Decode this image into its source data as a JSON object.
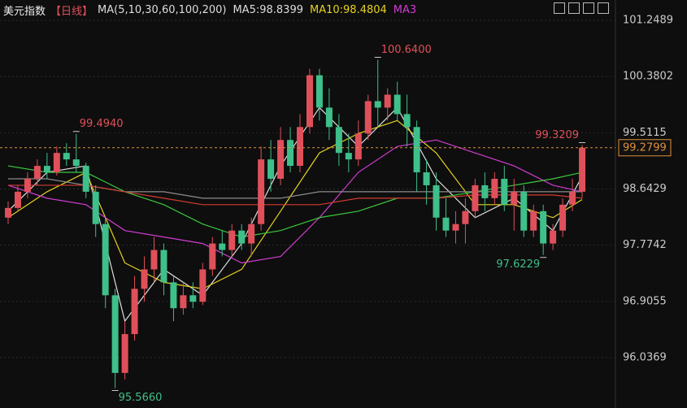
{
  "chart_data": {
    "type": "candlestick",
    "title": "美元指数",
    "period": "【日线】",
    "legend": [
      "MA(5,10,30,60,100,200)",
      "MA5:98.8399",
      "MA10:98.4804",
      "MA3"
    ],
    "legend_colors": [
      "#dddddd",
      "#dddddd",
      "#e6d21e",
      "#d23cd2"
    ],
    "ylim": [
      95.258,
      101.563
    ],
    "yticks": [
      101.2489,
      100.3802,
      99.5115,
      98.6429,
      97.7742,
      96.9055,
      96.0369
    ],
    "grid": true,
    "up_color": "#e0505a",
    "down_color": "#3fbf8a",
    "last_price": 99.2799,
    "open": [
      98.2,
      98.35,
      98.6,
      98.8,
      99.0,
      98.9,
      99.2,
      99.1,
      99.0,
      98.6,
      98.1,
      97.0,
      95.8,
      96.4,
      97.1,
      97.4,
      97.7,
      97.2,
      96.8,
      97.0,
      96.9,
      97.4,
      97.8,
      97.7,
      98.0,
      97.8,
      98.1,
      99.1,
      98.8,
      99.4,
      99.0,
      99.6,
      100.4,
      99.9,
      99.6,
      99.2,
      99.1,
      99.5,
      100.0,
      99.9,
      100.1,
      99.8,
      99.6,
      98.9,
      98.7,
      98.2,
      98.0,
      98.1,
      98.3,
      98.7,
      98.5,
      98.8,
      98.4,
      98.6,
      98.0,
      98.3,
      97.8,
      98.0,
      98.4,
      98.6
    ],
    "high": [
      98.45,
      98.7,
      98.9,
      99.1,
      99.2,
      99.3,
      99.35,
      99.494,
      99.05,
      98.7,
      98.2,
      97.1,
      96.6,
      97.3,
      97.6,
      97.9,
      97.8,
      97.3,
      97.2,
      97.2,
      97.5,
      97.9,
      98.0,
      98.1,
      98.1,
      98.2,
      99.3,
      99.4,
      99.6,
      99.6,
      99.8,
      100.5,
      100.5,
      100.2,
      99.8,
      99.5,
      99.7,
      100.1,
      100.64,
      100.2,
      100.3,
      100.1,
      99.7,
      99.1,
      98.9,
      98.5,
      98.3,
      98.5,
      98.8,
      98.9,
      98.9,
      99.0,
      98.8,
      98.7,
      98.4,
      98.4,
      98.1,
      98.5,
      98.8,
      99.3209
    ],
    "low": [
      98.1,
      98.3,
      98.5,
      98.7,
      98.8,
      98.85,
      99.0,
      98.9,
      98.5,
      97.9,
      96.8,
      95.566,
      95.7,
      96.3,
      96.9,
      97.2,
      97.0,
      96.6,
      96.7,
      96.8,
      96.85,
      97.3,
      97.6,
      97.6,
      97.7,
      97.6,
      98.0,
      98.6,
      98.7,
      98.9,
      98.9,
      99.5,
      99.7,
      99.4,
      99.0,
      98.9,
      99.0,
      99.4,
      99.6,
      99.7,
      99.7,
      99.3,
      98.6,
      98.4,
      98.0,
      97.9,
      97.8,
      97.8,
      98.2,
      98.3,
      98.4,
      98.3,
      98.0,
      97.9,
      97.9,
      97.6229,
      97.7,
      97.9,
      98.3,
      98.5
    ],
    "close": [
      98.35,
      98.6,
      98.8,
      99.0,
      98.9,
      99.2,
      99.1,
      99.0,
      98.6,
      98.1,
      97.0,
      95.8,
      96.4,
      97.1,
      97.4,
      97.7,
      97.2,
      96.8,
      97.0,
      96.9,
      97.4,
      97.8,
      97.7,
      98.0,
      97.8,
      98.1,
      99.1,
      98.8,
      99.4,
      99.0,
      99.6,
      100.4,
      99.9,
      99.6,
      99.2,
      99.1,
      99.5,
      100.0,
      99.9,
      100.1,
      99.8,
      99.6,
      98.9,
      98.7,
      98.2,
      98.0,
      98.1,
      98.3,
      98.7,
      98.5,
      98.8,
      98.4,
      98.6,
      98.0,
      98.3,
      97.8,
      98.0,
      98.4,
      98.6,
      99.2799
    ],
    "high_labels": [
      {
        "value": 99.494,
        "label": "99.4940"
      },
      {
        "value": 100.64,
        "label": "100.6400"
      },
      99.3209
    ],
    "low_labels": [
      {
        "value": 95.566,
        "label": "95.5660"
      },
      97.6229
    ],
    "ma_x": [
      0,
      4,
      8,
      12,
      16,
      20,
      24,
      28,
      32,
      36,
      40,
      44,
      48,
      52,
      56,
      59
    ],
    "ma_series": [
      {
        "color": "#dddddd",
        "values": [
          98.3,
          98.9,
          99.0,
          96.6,
          97.4,
          97.0,
          97.8,
          99.0,
          99.9,
          99.3,
          99.9,
          98.8,
          98.2,
          98.5,
          98.0,
          98.84
        ]
      },
      {
        "color": "#e6d21e",
        "values": [
          98.2,
          98.6,
          98.9,
          97.5,
          97.2,
          97.1,
          97.4,
          98.3,
          99.2,
          99.5,
          99.7,
          99.2,
          98.4,
          98.4,
          98.2,
          98.48
        ]
      },
      {
        "color": "#d23cd2",
        "values": [
          98.7,
          98.5,
          98.4,
          98.0,
          97.9,
          97.8,
          97.5,
          97.6,
          98.2,
          98.9,
          99.3,
          99.4,
          99.2,
          99.0,
          98.7,
          98.6
        ]
      },
      {
        "color": "#3cc83c",
        "values": [
          99.0,
          98.9,
          98.9,
          98.6,
          98.4,
          98.1,
          97.9,
          98.0,
          98.2,
          98.3,
          98.5,
          98.5,
          98.6,
          98.7,
          98.8,
          98.9
        ]
      },
      {
        "color": "#8c8c8c",
        "values": [
          98.8,
          98.8,
          98.7,
          98.6,
          98.6,
          98.5,
          98.5,
          98.5,
          98.6,
          98.6,
          98.6,
          98.6,
          98.6,
          98.6,
          98.6,
          98.6
        ]
      },
      {
        "color": "#d23c32",
        "values": [
          98.7,
          98.7,
          98.7,
          98.6,
          98.5,
          98.4,
          98.4,
          98.4,
          98.4,
          98.5,
          98.5,
          98.5,
          98.55,
          98.55,
          98.55,
          98.5
        ]
      }
    ]
  }
}
